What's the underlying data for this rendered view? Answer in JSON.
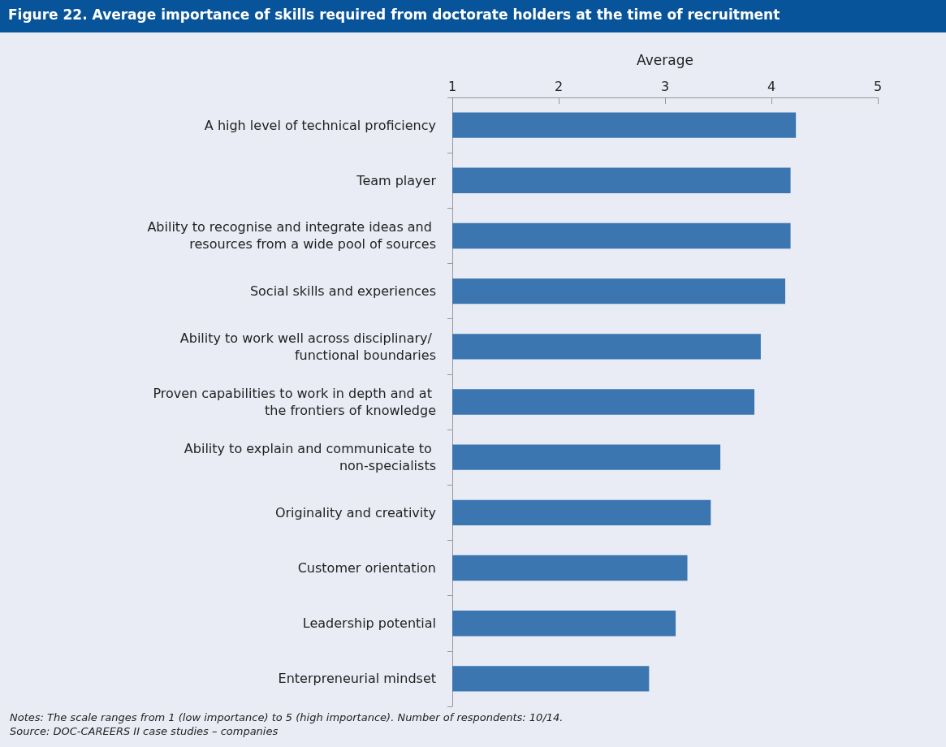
{
  "chart_data": {
    "type": "bar",
    "orientation": "horizontal",
    "title": "Figure 22. Average importance of skills required from doctorate holders at the time of recruitment",
    "xlabel": "Average",
    "categories": [
      "A high level of technical proficiency",
      "Team player",
      "Ability to recognise and integrate ideas and resources from a wide pool of sources",
      "Social skills and experiences",
      "Ability to work well across disciplinary/ functional boundaries",
      "Proven capabilities to work in depth and at the frontiers of knowledge",
      "Ability to explain and communicate to non-specialists",
      "Originality and creativity",
      "Customer orientation",
      "Leadership potential",
      "Enterpreneurial mindset"
    ],
    "values": [
      4.23,
      4.18,
      4.18,
      4.13,
      3.9,
      3.84,
      3.52,
      3.43,
      3.21,
      3.1,
      2.85
    ],
    "color": "#3b76b1",
    "xlim": [
      1,
      5
    ],
    "xticks": [
      1,
      2,
      3,
      4,
      5
    ],
    "grid": false,
    "annotations": [
      "Notes: The scale ranges from 1 (low importance) to 5 (high importance). Number of respondents: 10/14.",
      "Source: DOC-CAREERS II case studies – companies"
    ]
  }
}
